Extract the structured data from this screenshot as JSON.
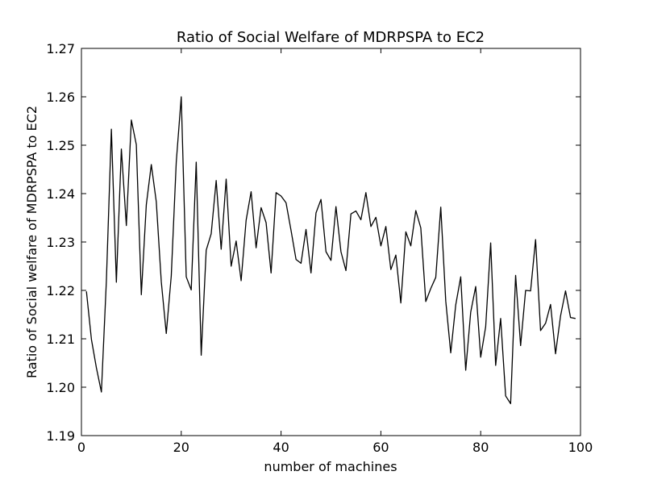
{
  "chart_data": {
    "type": "line",
    "title": "Ratio of Social Welfare of  MDRPSPA to EC2",
    "xlabel": "number of machines",
    "ylabel": "Ratio of Social welfare of MDRPSPA to EC2",
    "xlim": [
      0,
      100
    ],
    "ylim": [
      1.19,
      1.27
    ],
    "xticks": [
      0,
      20,
      40,
      60,
      80,
      100
    ],
    "yticks": [
      1.19,
      1.2,
      1.21,
      1.22,
      1.23,
      1.24,
      1.25,
      1.26,
      1.27
    ],
    "xtick_labels": [
      "0",
      "20",
      "40",
      "60",
      "80",
      "100"
    ],
    "ytick_labels": [
      "1.19",
      "1.20",
      "1.21",
      "1.22",
      "1.23",
      "1.24",
      "1.25",
      "1.26",
      "1.27"
    ],
    "grid": false,
    "legend": "none",
    "line_color": "#000000",
    "series": [
      {
        "x": [
          1,
          2,
          3,
          4,
          5,
          6,
          7,
          8,
          9,
          10,
          11,
          12,
          13,
          14,
          15,
          16,
          17,
          18,
          19,
          20,
          21,
          22,
          23,
          24,
          25,
          26,
          27,
          28,
          29,
          30,
          31,
          32,
          33,
          34,
          35,
          36,
          37,
          38,
          39,
          40,
          41,
          42,
          43,
          44,
          45,
          46,
          47,
          48,
          49,
          50,
          51,
          52,
          53,
          54,
          55,
          56,
          57,
          58,
          59,
          60,
          61,
          62,
          63,
          64,
          65,
          66,
          67,
          68,
          69,
          70,
          71,
          72,
          73,
          74,
          75,
          76,
          77,
          78,
          79,
          80,
          81,
          82,
          83,
          84,
          85,
          86,
          87,
          88,
          89,
          90,
          91,
          92,
          93,
          94,
          95,
          96,
          97,
          98,
          99
        ],
        "y": [
          1.2198,
          1.2099,
          1.204,
          1.199,
          1.222,
          1.2533,
          1.2217,
          1.2492,
          1.2334,
          1.2552,
          1.2501,
          1.2191,
          1.2377,
          1.246,
          1.2383,
          1.2218,
          1.2111,
          1.223,
          1.2465,
          1.26,
          1.2228,
          1.2201,
          1.2465,
          1.2066,
          1.2283,
          1.2317,
          1.2427,
          1.2285,
          1.243,
          1.225,
          1.2302,
          1.222,
          1.2345,
          1.2404,
          1.2288,
          1.2371,
          1.234,
          1.2236,
          1.2402,
          1.2395,
          1.2381,
          1.2324,
          1.2264,
          1.2256,
          1.2326,
          1.2236,
          1.236,
          1.2388,
          1.228,
          1.2262,
          1.2373,
          1.228,
          1.2241,
          1.2358,
          1.2364,
          1.2346,
          1.2402,
          1.2332,
          1.2351,
          1.2292,
          1.2332,
          1.2243,
          1.2273,
          1.2174,
          1.2321,
          1.2292,
          1.2365,
          1.2329,
          1.2177,
          1.2204,
          1.2227,
          1.2372,
          1.2178,
          1.2071,
          1.217,
          1.2228,
          1.2035,
          1.2155,
          1.2208,
          1.2062,
          1.2125,
          1.2298,
          1.2045,
          1.2142,
          1.1982,
          1.1966,
          1.2231,
          1.2086,
          1.22,
          1.2199,
          1.2305,
          1.2117,
          1.2132,
          1.2171,
          1.2069,
          1.2147,
          1.2199,
          1.2144,
          1.2142
        ]
      }
    ]
  }
}
